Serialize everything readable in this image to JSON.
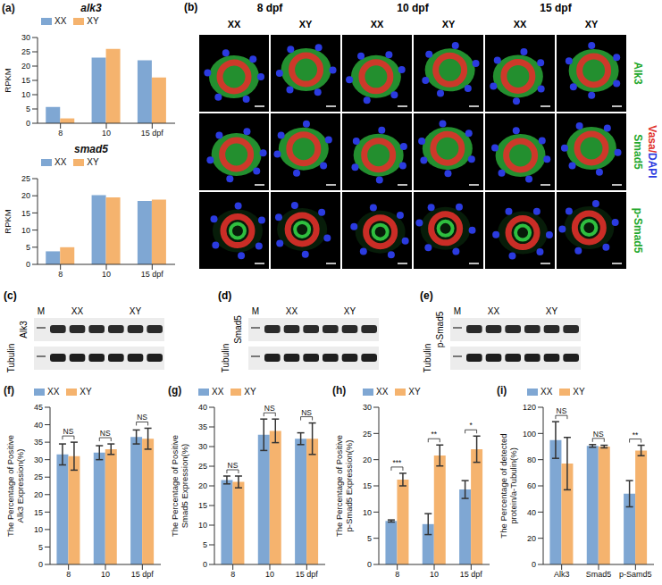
{
  "chart_data": [
    {
      "panel_label": "(a)",
      "type": "bar",
      "title": "alk3",
      "ylabel": "RPKM",
      "categories": [
        "8",
        "10",
        "15 dpf"
      ],
      "series": [
        {
          "name": "XX",
          "color": "#7fa7d3",
          "values": [
            5.7,
            23,
            22
          ]
        },
        {
          "name": "XY",
          "color": "#f5b36e",
          "values": [
            1.7,
            26,
            16
          ]
        }
      ],
      "ylim": [
        0,
        30
      ],
      "yticks": [
        0,
        5,
        10,
        15,
        20,
        25,
        30
      ],
      "legend": "top"
    },
    {
      "type": "bar",
      "title": "smad5",
      "ylabel": "RPKM",
      "categories": [
        "8",
        "10",
        "15 dpf"
      ],
      "series": [
        {
          "name": "XX",
          "color": "#7fa7d3",
          "values": [
            3.8,
            20.2,
            18.5
          ]
        },
        {
          "name": "XY",
          "color": "#f5b36e",
          "values": [
            5,
            19.5,
            18.9
          ]
        }
      ],
      "ylim": [
        0,
        25
      ],
      "yticks": [
        0,
        5,
        10,
        15,
        20,
        25
      ],
      "legend": "top"
    },
    {
      "panel_label": "(f)",
      "type": "bar",
      "ylabel": "The Percentage of Positive Alk3 Expression(%)",
      "categories": [
        "8",
        "10",
        "15 dpf"
      ],
      "series": [
        {
          "name": "XX",
          "color": "#7fa7d3",
          "values": [
            31.5,
            32,
            36.5
          ],
          "errors": [
            3,
            2,
            2
          ]
        },
        {
          "name": "XY",
          "color": "#f5b36e",
          "values": [
            31,
            33,
            36
          ],
          "errors": [
            4,
            1.5,
            3
          ]
        }
      ],
      "significance": [
        "NS",
        "NS",
        "NS"
      ],
      "ylim": [
        0,
        45
      ],
      "yticks": [
        0,
        5,
        10,
        15,
        20,
        25,
        30,
        35,
        40,
        45
      ],
      "legend": "top"
    },
    {
      "panel_label": "(g)",
      "type": "bar",
      "ylabel": "The Percentage of Positive Smad5 Expression(%)",
      "categories": [
        "8",
        "10",
        "15 dpf"
      ],
      "series": [
        {
          "name": "XX",
          "color": "#7fa7d3",
          "values": [
            21.5,
            33,
            32
          ],
          "errors": [
            1,
            4,
            1.5
          ]
        },
        {
          "name": "XY",
          "color": "#f5b36e",
          "values": [
            21,
            34,
            32
          ],
          "errors": [
            1.5,
            3,
            4
          ]
        }
      ],
      "significance": [
        "NS",
        "NS",
        "NS"
      ],
      "ylim": [
        0,
        40
      ],
      "yticks": [
        0,
        5,
        10,
        15,
        20,
        25,
        30,
        35,
        40
      ],
      "legend": "top"
    },
    {
      "panel_label": "(h)",
      "type": "bar",
      "ylabel": "The Percentage of Positive p-Smad5 Expression(%)",
      "categories": [
        "8",
        "10",
        "15 dpf"
      ],
      "series": [
        {
          "name": "XX",
          "color": "#7fa7d3",
          "values": [
            8.3,
            7.7,
            14.3
          ],
          "errors": [
            0.2,
            2,
            1.7
          ]
        },
        {
          "name": "XY",
          "color": "#f5b36e",
          "values": [
            16.2,
            20.8,
            22
          ],
          "errors": [
            1.2,
            2,
            2.5
          ]
        }
      ],
      "significance": [
        "***",
        "**",
        "*"
      ],
      "ylim": [
        0,
        30
      ],
      "yticks": [
        0,
        5,
        10,
        15,
        20,
        25,
        30
      ],
      "legend": "top"
    },
    {
      "panel_label": "(i)",
      "type": "bar",
      "ylabel": "The Percentage of detected protein/a-Tubulin(%)",
      "categories": [
        "Alk3",
        "Smad5",
        "p-Samd5"
      ],
      "series": [
        {
          "name": "XX",
          "color": "#7fa7d3",
          "values": [
            95,
            90.5,
            54
          ],
          "errors": [
            14,
            1,
            10
          ]
        },
        {
          "name": "XY",
          "color": "#f5b36e",
          "values": [
            77,
            90,
            87
          ],
          "errors": [
            20,
            1,
            4
          ]
        }
      ],
      "significance": [
        "NS",
        "NS",
        "**"
      ],
      "ylim": [
        0,
        120
      ],
      "yticks": [
        0,
        20,
        40,
        60,
        80,
        100,
        120
      ],
      "legend": "top"
    }
  ],
  "images": {
    "panel_label": "(b)",
    "columns": [
      {
        "label": "8 dpf",
        "groups": [
          "XX",
          "XY"
        ]
      },
      {
        "label": "10 dpf",
        "groups": [
          "XX",
          "XY"
        ]
      },
      {
        "label": "15 dpf",
        "groups": [
          "XX",
          "XY"
        ]
      }
    ],
    "rows": [
      "Alk3",
      "Smad5",
      "p-Smad5"
    ],
    "stain": [
      {
        "text": "Vasa",
        "color": "#e0302a"
      },
      {
        "text": "/",
        "color": "#e0302a"
      },
      {
        "text": "DAPI",
        "color": "#2b3be0"
      }
    ]
  },
  "blots": [
    {
      "panel_label": "(c)",
      "ladder_label": "M",
      "groups": [
        "XX",
        "XY"
      ],
      "target": "Alk3",
      "control": "Tubulin"
    },
    {
      "panel_label": "(d)",
      "ladder_label": "M",
      "groups": [
        "XX",
        "XY"
      ],
      "target": "Smad5",
      "control": "Tubulin"
    },
    {
      "panel_label": "(e)",
      "ladder_label": "M",
      "groups": [
        "XX",
        "XY"
      ],
      "target": "p-Smad5",
      "control": "Tubulin"
    }
  ]
}
